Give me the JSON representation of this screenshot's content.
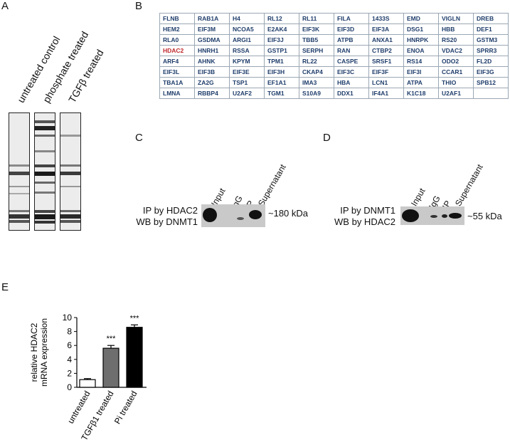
{
  "panels": {
    "a": "A",
    "b": "B",
    "c": "C",
    "d": "D",
    "e": "E"
  },
  "panel_a": {
    "lanes": [
      "untreated control",
      "phosphate treated",
      "TGFβ treated"
    ]
  },
  "panel_b": {
    "highlight_color": "#c0282d",
    "text_color": "#1f3d6b",
    "rows": [
      [
        "FLNB",
        "RAB1A",
        "H4",
        "RL12",
        "RL11",
        "FILA",
        "1433S",
        "EMD",
        "VIGLN",
        "DREB"
      ],
      [
        "HEM2",
        "EIF3M",
        "NCOA5",
        "E2AK4",
        "EIF3K",
        "EIF3D",
        "EIF3A",
        "DSG1",
        "HBB",
        "DEF1"
      ],
      [
        "RLA0",
        "GSDMA",
        "ARGI1",
        "EIF3J",
        "TBB5",
        "ATPB",
        "ANXA1",
        "HNRPK",
        "RS20",
        "GSTM3"
      ],
      [
        "HDAC2",
        "HNRH1",
        "RSSA",
        "GSTP1",
        "SERPH",
        "RAN",
        "CTBP2",
        "ENOA",
        "VDAC2",
        "SPRR3"
      ],
      [
        "ARF4",
        "AHNK",
        "KPYM",
        "TPM1",
        "RL22",
        "CASPE",
        "SRSF1",
        "RS14",
        "ODO2",
        "FL2D"
      ],
      [
        "EIF3L",
        "EIF3B",
        "EIF3E",
        "EIF3H",
        "CKAP4",
        "EIF3C",
        "EIF3F",
        "EIF3I",
        "CCAR1",
        "EIF3G"
      ],
      [
        "TBA1A",
        "ZA2G",
        "TSP1",
        "EF1A1",
        "IMA3",
        "HBA",
        "LCN1",
        "ATPA",
        "THIO",
        "SPB12"
      ],
      [
        "LMNA",
        "RBBP4",
        "U2AF2",
        "TGM1",
        "S10A9",
        "DDX1",
        "IF4A1",
        "K1C18",
        "U2AF1",
        ""
      ]
    ],
    "highlighted": "HDAC2"
  },
  "panel_c": {
    "columns": [
      "Input",
      "IgG",
      "IP",
      "Supernatant"
    ],
    "label_line1": "IP by HDAC2",
    "label_line2": "WB by DNMT1",
    "size": "~180 kDa"
  },
  "panel_d": {
    "columns": [
      "Input",
      "IgG",
      "IP",
      "Supernatant"
    ],
    "label_line1": "IP by DNMT1",
    "label_line2": "WB by HDAC2",
    "size": "~55 kDa"
  },
  "chart_data": {
    "type": "bar",
    "categories": [
      "untreated",
      "TGFβ1 treated",
      "Pi treated"
    ],
    "values": [
      1.1,
      5.6,
      8.6
    ],
    "errors": [
      0.15,
      0.4,
      0.35
    ],
    "significance": [
      "",
      "***",
      "***"
    ],
    "fill_colors": [
      "#ffffff",
      "#6e6e6e",
      "#000000"
    ],
    "ylabel_line1": "relative HDAC2",
    "ylabel_line2": "mRNA expression",
    "ylim": [
      0,
      10
    ],
    "yticks": [
      "0",
      "2",
      "4",
      "6",
      "8",
      "10"
    ]
  }
}
